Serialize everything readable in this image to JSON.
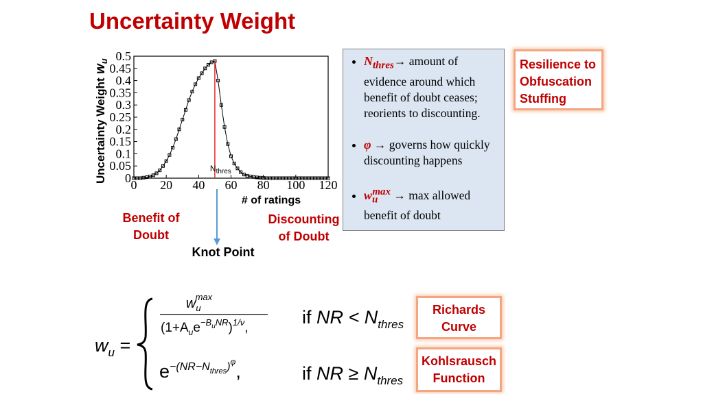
{
  "title": "Uncertainty Weight",
  "chart_data": {
    "type": "line",
    "y_label": "Uncertainty Weight",
    "y_label_symbol": [
      "w",
      "u"
    ],
    "x_label": "# of ratings",
    "xlim": [
      0,
      120
    ],
    "xticks": [
      0,
      20,
      40,
      60,
      80,
      100,
      120
    ],
    "ylim": [
      0,
      0.5
    ],
    "yticks": [
      0,
      0.05,
      0.1,
      0.15,
      0.2,
      0.25,
      0.3,
      0.35,
      0.4,
      0.45,
      0.5
    ],
    "x": [
      0,
      2,
      4,
      6,
      8,
      10,
      12,
      14,
      16,
      18,
      20,
      22,
      24,
      26,
      28,
      30,
      32,
      34,
      36,
      38,
      40,
      42,
      44,
      46,
      48,
      50,
      52,
      54,
      56,
      58,
      60,
      62,
      64,
      66,
      68,
      70,
      72,
      74,
      76,
      78,
      80,
      82,
      84,
      86,
      88,
      90,
      92,
      94,
      96,
      98,
      100,
      102,
      104,
      106,
      108,
      110,
      112,
      114,
      116,
      118,
      120
    ],
    "series": [
      {
        "color": "#000000",
        "values": [
          0,
          0,
          0,
          0.002,
          0.004,
          0.007,
          0.012,
          0.02,
          0.032,
          0.05,
          0.07,
          0.095,
          0.125,
          0.16,
          0.2,
          0.24,
          0.28,
          0.32,
          0.355,
          0.385,
          0.41,
          0.43,
          0.45,
          0.465,
          0.475,
          0.48,
          0.4,
          0.3,
          0.21,
          0.14,
          0.09,
          0.06,
          0.04,
          0.025,
          0.015,
          0.01,
          0.007,
          0.005,
          0.003,
          0.002,
          0.001,
          0,
          0,
          0,
          0,
          0,
          0,
          0,
          0,
          0,
          0,
          0,
          0,
          0,
          0,
          0,
          0,
          0,
          0,
          0,
          0
        ]
      }
    ],
    "vline": {
      "x": 50,
      "color": "#e8262a",
      "label": [
        "N",
        "thres"
      ]
    }
  },
  "annotations": {
    "benefit": "Benefit of Doubt",
    "discounting": "Discounting of Doubt",
    "knot": "Knot Point"
  },
  "info": {
    "bullets": [
      {
        "symbol": "N",
        "sub": "thres",
        "text": "→  amount of evidence around which benefit of doubt ceases; reorients to discounting."
      },
      {
        "symbol": "φ",
        "text": " → governs how quickly discounting happens"
      },
      {
        "symbol": "w",
        "sub": "u",
        "sup": "max",
        "text": " → max allowed benefit of doubt"
      }
    ]
  },
  "resilience": "Resilience to Obfuscation Stuffing",
  "richards": "Richards Curve",
  "kohlsrausch": "Kohlsrausch Function",
  "formula": {
    "lhs": [
      "w",
      "u",
      " ="
    ],
    "num": [
      "w",
      "u",
      "max"
    ],
    "den": [
      "(1+A",
      "u",
      "e",
      "−B",
      "u",
      "NR",
      ")",
      "1/ν",
      ","
    ],
    "cond1": [
      "if ",
      "NR < N",
      "thres"
    ],
    "exp": [
      "e",
      "−(NR−N",
      "thres",
      ")",
      "φ",
      ","
    ],
    "cond2": [
      "if ",
      "NR ≥ N",
      "thres"
    ]
  }
}
